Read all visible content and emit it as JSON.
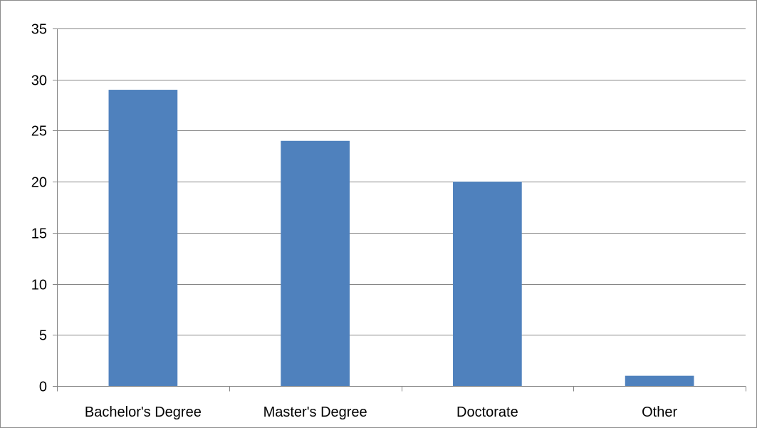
{
  "chart_data": {
    "type": "bar",
    "categories": [
      "Bachelor's Degree",
      "Master's Degree",
      "Doctorate",
      "Other"
    ],
    "values": [
      29,
      24,
      20,
      1
    ],
    "title": "",
    "xlabel": "",
    "ylabel": "",
    "ylim": [
      0,
      35
    ],
    "yticks": [
      "0",
      "5",
      "10",
      "15",
      "20",
      "25",
      "30",
      "35"
    ],
    "grid": true,
    "legend": "none",
    "bar_color": "#4F81BD"
  }
}
